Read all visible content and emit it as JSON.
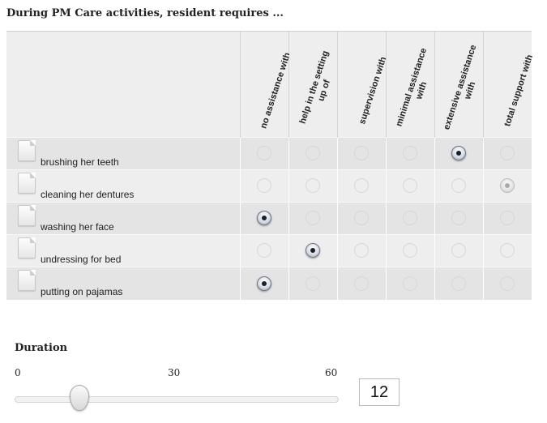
{
  "question": "During PM Care activities, resident requires ...",
  "columns": [
    "no assistance with",
    "help in the setting up of",
    "supervision with",
    "minimal assistance with",
    "extensive assistance with",
    "total support with"
  ],
  "rows": [
    {
      "label": "brushing her teeth",
      "selected": 4
    },
    {
      "label": "cleaning her dentures",
      "selected": 5
    },
    {
      "label": "washing her face",
      "selected": 0
    },
    {
      "label": "undressing for bed",
      "selected": 1
    },
    {
      "label": "putting on pajamas",
      "selected": 0
    }
  ],
  "duration": {
    "title": "Duration",
    "min": 0,
    "mid": 30,
    "max": 60,
    "value": 12
  }
}
